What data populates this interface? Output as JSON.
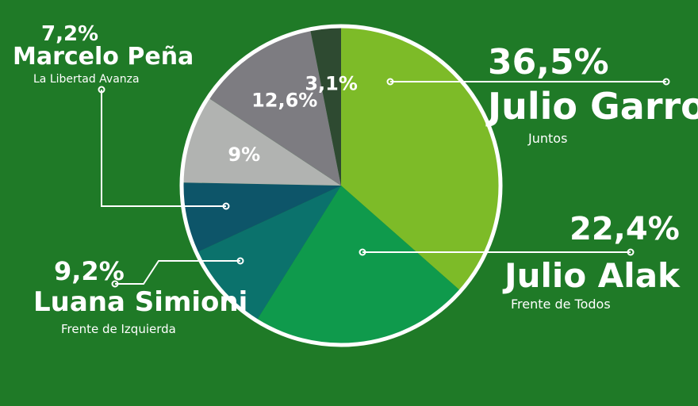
{
  "colors": {
    "background": "#1f7a27",
    "ring": "#ffffff",
    "leader": "#ffffff"
  },
  "chart_data": {
    "type": "pie",
    "title": "",
    "slices": [
      {
        "value": 36.5,
        "label": "36,5%",
        "name": "Julio Garro",
        "party": "Juntos",
        "color": "#7dbb28"
      },
      {
        "value": 22.4,
        "label": "22,4%",
        "name": "Julio Alak",
        "party": "Frente de Todos",
        "color": "#0f9a4c"
      },
      {
        "value": 9.2,
        "label": "9,2%",
        "name": "Luana Simioni",
        "party": "Frente de Izquierda",
        "color": "#0b726c"
      },
      {
        "value": 7.2,
        "label": "7,2%",
        "name": "Marcelo Peña",
        "party": "La Libertad Avanza",
        "color": "#0d5569"
      },
      {
        "value": 9,
        "label": "9%",
        "color": "#b1b3b1"
      },
      {
        "value": 12.6,
        "label": "12,6%",
        "color": "#7d7c81"
      },
      {
        "value": 3.1,
        "label": "3,1%",
        "color": "#2e4a31"
      }
    ]
  }
}
